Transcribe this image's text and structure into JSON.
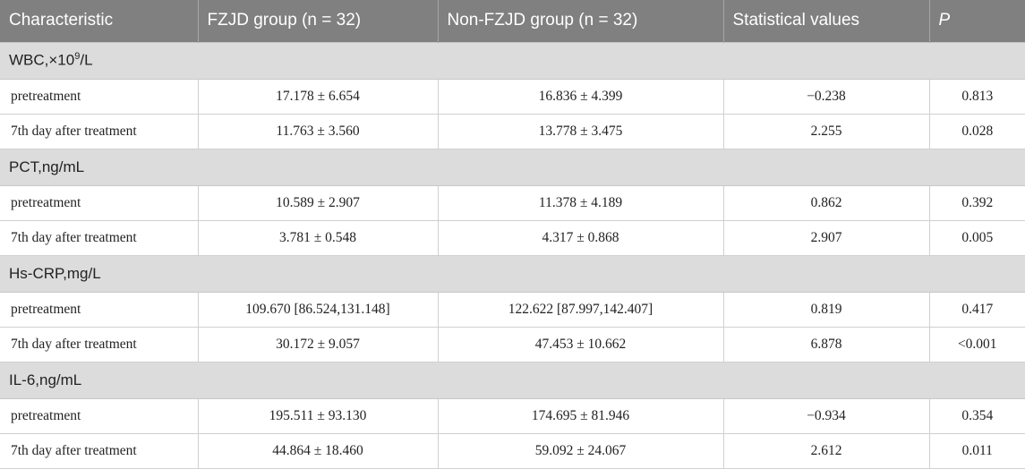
{
  "header": {
    "characteristic": "Characteristic",
    "fzjd": "FZJD group (n = 32)",
    "nonfzjd": "Non-FZJD group (n = 32)",
    "stat": "Statistical values",
    "p": "P"
  },
  "groups": [
    {
      "title": "WBC,×10",
      "title_sup": "9",
      "title_suffix": "/L",
      "rows": [
        {
          "label": "pretreatment",
          "fzjd": "17.178 ± 6.654",
          "nonfzjd": "16.836 ± 4.399",
          "stat": "−0.238",
          "p": "0.813"
        },
        {
          "label": "7th day after treatment",
          "fzjd": "11.763 ± 3.560",
          "nonfzjd": "13.778 ± 3.475",
          "stat": "2.255",
          "p": "0.028"
        }
      ]
    },
    {
      "title": "PCT,ng/mL",
      "rows": [
        {
          "label": "pretreatment",
          "fzjd": "10.589 ± 2.907",
          "nonfzjd": "11.378 ± 4.189",
          "stat": "0.862",
          "p": "0.392"
        },
        {
          "label": "7th day after treatment",
          "fzjd": "3.781 ± 0.548",
          "nonfzjd": "4.317 ± 0.868",
          "stat": "2.907",
          "p": "0.005"
        }
      ]
    },
    {
      "title": "Hs-CRP,mg/L",
      "rows": [
        {
          "label": "pretreatment",
          "fzjd": "109.670 [86.524,131.148]",
          "nonfzjd": "122.622 [87.997,142.407]",
          "stat": "0.819",
          "p": "0.417"
        },
        {
          "label": "7th day after treatment",
          "fzjd": "30.172 ± 9.057",
          "nonfzjd": "47.453 ± 10.662",
          "stat": "6.878",
          "p": "<0.001"
        }
      ]
    },
    {
      "title": "IL-6,ng/mL",
      "rows": [
        {
          "label": "pretreatment",
          "fzjd": "195.511 ± 93.130",
          "nonfzjd": "174.695 ± 81.946",
          "stat": "−0.934",
          "p": "0.354"
        },
        {
          "label": "7th day after treatment",
          "fzjd": "44.864 ± 18.460",
          "nonfzjd": "59.092 ± 24.067",
          "stat": "2.612",
          "p": "0.011"
        }
      ]
    }
  ]
}
